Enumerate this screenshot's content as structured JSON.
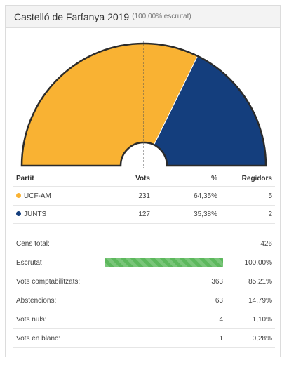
{
  "header": {
    "title": "Castelló de Farfanya 2019",
    "subtitle": "(100,00% escrutat)"
  },
  "chart_data": {
    "type": "pie",
    "subtype": "semicircle",
    "categories": [
      "UCF-AM",
      "JUNTS"
    ],
    "values": [
      231,
      127
    ],
    "colors": [
      "#f9b233",
      "#143e7d"
    ],
    "majority_line": true
  },
  "results": {
    "columns": [
      "Partit",
      "Vots",
      "%",
      "Regidors"
    ],
    "rows": [
      {
        "party": "UCF-AM",
        "color": "#f9b233",
        "votes": "231",
        "pct": "64,35%",
        "seats": "5"
      },
      {
        "party": "JUNTS",
        "color": "#143e7d",
        "votes": "127",
        "pct": "35,38%",
        "seats": "2"
      }
    ]
  },
  "stats": {
    "cens_label": "Cens total:",
    "cens_value": "426",
    "escrutat_label": "Escrutat",
    "escrutat_progress": 1.0,
    "escrutat_value": "100,00%",
    "comptabilitzats_label": "Vots comptabilitzats:",
    "comptabilitzats_votes": "363",
    "comptabilitzats_pct": "85,21%",
    "abstencions_label": "Abstencions:",
    "abstencions_votes": "63",
    "abstencions_pct": "14,79%",
    "nuls_label": "Vots nuls:",
    "nuls_votes": "4",
    "nuls_pct": "1,10%",
    "blanc_label": "Vots en blanc:",
    "blanc_votes": "1",
    "blanc_pct": "0,28%"
  }
}
